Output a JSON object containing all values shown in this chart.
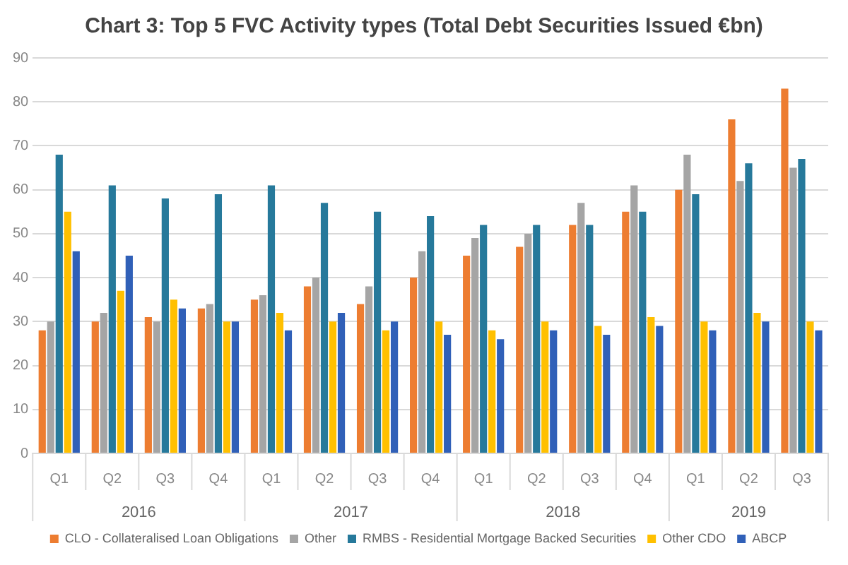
{
  "chart_data": {
    "type": "bar",
    "title": "Chart 3: Top 5 FVC Activity types (Total Debt Securities Issued €bn)",
    "categories": [
      "Q1",
      "Q2",
      "Q3",
      "Q4",
      "Q1",
      "Q2",
      "Q3",
      "Q4",
      "Q1",
      "Q2",
      "Q3",
      "Q4",
      "Q1",
      "Q2",
      "Q3"
    ],
    "series": [
      {
        "name": "CLO - Collateralised Loan Obligations",
        "color": "#ed7d31",
        "values": [
          28,
          30,
          31,
          33,
          35,
          38,
          34,
          40,
          45,
          47,
          52,
          55,
          60,
          76,
          83
        ]
      },
      {
        "name": "Other",
        "color": "#a5a5a5",
        "values": [
          30,
          32,
          30,
          34,
          36,
          40,
          38,
          46,
          49,
          50,
          57,
          61,
          68,
          62,
          65
        ]
      },
      {
        "name": "RMBS - Residential Mortgage Backed Securities",
        "color": "#26799b",
        "values": [
          68,
          61,
          58,
          59,
          61,
          57,
          55,
          54,
          52,
          52,
          52,
          55,
          59,
          66,
          67
        ]
      },
      {
        "name": "Other CDO",
        "color": "#ffc000",
        "values": [
          55,
          37,
          35,
          30,
          32,
          30,
          28,
          30,
          28,
          30,
          29,
          31,
          30,
          32,
          30
        ]
      },
      {
        "name": "ABCP",
        "color": "#3060b8",
        "values": [
          46,
          45,
          33,
          30,
          28,
          32,
          30,
          27,
          26,
          28,
          27,
          29,
          28,
          30,
          28
        ]
      }
    ],
    "annotations": [
      "2016",
      "2017",
      "2018",
      "2019"
    ],
    "ylim": [
      0,
      90
    ],
    "yticks": [
      0,
      10,
      20,
      30,
      40,
      50,
      60,
      70,
      80,
      90
    ],
    "grid": "y",
    "legend": "bottom"
  }
}
